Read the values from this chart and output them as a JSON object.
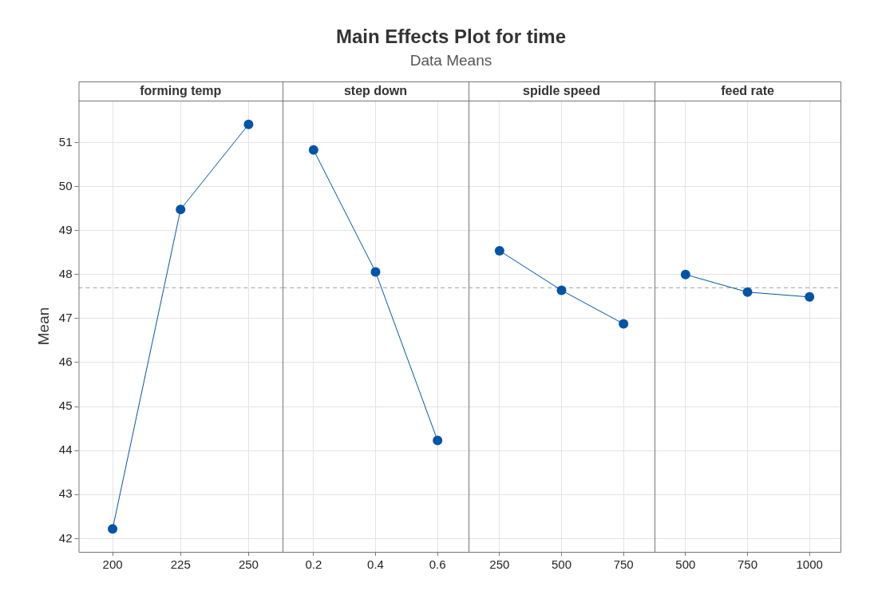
{
  "chart_data": [
    {
      "type": "line",
      "xlabel": "forming temp",
      "ylabel": "Mean",
      "categories": [
        "200",
        "225",
        "250"
      ],
      "values": [
        42.22,
        49.48,
        51.41
      ],
      "color": "#0054a6",
      "marker": "circle",
      "ylim": [
        41.7,
        51.95
      ],
      "yticks": [
        42,
        43,
        44,
        45,
        46,
        47,
        48,
        49,
        50,
        51
      ],
      "grid": true,
      "ref_lines": [
        {
          "axis": "y",
          "value": 47.7,
          "color": "#a0a0a0",
          "line_style": "dashed"
        }
      ]
    },
    {
      "type": "line",
      "title": "Main Effects Plot for time",
      "subtitle": "Data Means",
      "xlabel": "step down",
      "categories": [
        "0.2",
        "0.4",
        "0.6"
      ],
      "values": [
        50.83,
        48.06,
        44.23
      ],
      "color": "#0054a6",
      "marker": "circle",
      "ylim": [
        41.7,
        51.95
      ],
      "yticks": [
        42,
        43,
        44,
        45,
        46,
        47,
        48,
        49,
        50,
        51
      ],
      "grid": true,
      "tick_labels": "x",
      "ref_lines": [
        {
          "axis": "y",
          "value": 47.7,
          "color": "#a0a0a0",
          "line_style": "dashed"
        }
      ]
    },
    {
      "type": "line",
      "xlabel": "spidle speed",
      "categories": [
        "250",
        "500",
        "750"
      ],
      "values": [
        48.54,
        47.64,
        46.88
      ],
      "color": "#0054a6",
      "marker": "circle",
      "ylim": [
        41.7,
        51.95
      ],
      "yticks": [
        42,
        43,
        44,
        45,
        46,
        47,
        48,
        49,
        50,
        51
      ],
      "grid": true,
      "tick_labels": "x",
      "ref_lines": [
        {
          "axis": "y",
          "value": 47.7,
          "color": "#a0a0a0",
          "line_style": "dashed"
        }
      ]
    },
    {
      "type": "line",
      "xlabel": "feed rate",
      "categories": [
        "500",
        "750",
        "1000"
      ],
      "values": [
        48.0,
        47.6,
        47.49
      ],
      "color": "#0054a6",
      "marker": "circle",
      "ylim": [
        41.7,
        51.95
      ],
      "yticks": [
        42,
        43,
        44,
        45,
        46,
        47,
        48,
        49,
        50,
        51
      ],
      "grid": true,
      "tick_labels": "x",
      "ref_lines": [
        {
          "axis": "y",
          "value": 47.7,
          "color": "#a0a0a0",
          "line_style": "dashed"
        }
      ]
    }
  ]
}
